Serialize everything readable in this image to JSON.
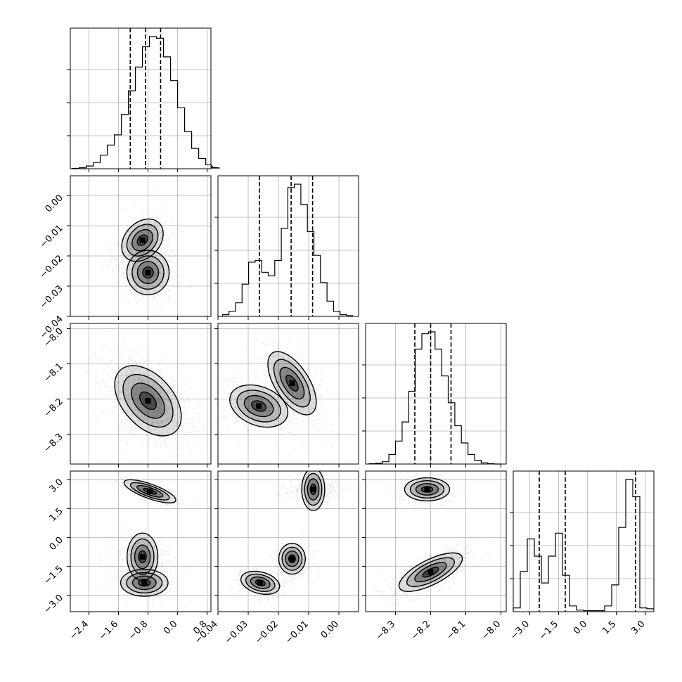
{
  "chart_data": {
    "type": "corner",
    "title": "",
    "grid": true,
    "colors": {
      "line": "#000000",
      "grid": "#b0b0b0",
      "density": "#000000"
    },
    "params": [
      {
        "index": 0,
        "range": [
          -2.9,
          0.9
        ],
        "ticks": [
          -2.4,
          -1.6,
          -0.8,
          0.0,
          0.8
        ],
        "tick_labels": [
          "−2.4",
          "−1.6",
          "−0.8",
          "0.0",
          "0.8"
        ],
        "quantiles": [
          -1.28,
          -0.87,
          -0.46
        ]
      },
      {
        "index": 1,
        "range": [
          -0.04,
          0.0065
        ],
        "ticks": [
          -0.04,
          -0.03,
          -0.02,
          -0.01,
          0.0
        ],
        "tick_labels": [
          "−0.04",
          "−0.03",
          "−0.02",
          "−0.01",
          "0.00"
        ],
        "quantiles": [
          -0.0263,
          -0.0158,
          -0.0087
        ]
      },
      {
        "index": 2,
        "range": [
          -8.385,
          -7.985
        ],
        "ticks": [
          -8.3,
          -8.2,
          -8.1,
          -8.0
        ],
        "tick_labels": [
          "−8.3",
          "−8.2",
          "−8.1",
          "−8.0"
        ],
        "quantiles": [
          -8.245,
          -8.2,
          -8.142
        ]
      },
      {
        "index": 3,
        "range": [
          -3.85,
          3.45
        ],
        "ticks": [
          -3.0,
          -1.5,
          0.0,
          1.5,
          3.0
        ],
        "tick_labels": [
          "−3.0",
          "−1.5",
          "0.0",
          "1.5",
          "3.0"
        ],
        "quantiles": [
          -2.5,
          -1.15,
          2.5
        ]
      }
    ],
    "histograms": [
      {
        "param": 0,
        "bin_edges_start": -2.85,
        "bin_width": 0.19,
        "counts": [
          1,
          3,
          8,
          18,
          40,
          70,
          100,
          160,
          230,
          300,
          360,
          390,
          385,
          330,
          260,
          180,
          110,
          60,
          30,
          12,
          5,
          2
        ]
      },
      {
        "param": 1,
        "bin_edges_start": -0.0385,
        "bin_width": 0.00216,
        "counts": [
          5,
          15,
          40,
          95,
          160,
          165,
          130,
          120,
          165,
          260,
          380,
          390,
          330,
          250,
          180,
          100,
          45,
          15,
          5,
          2
        ]
      },
      {
        "param": 2,
        "bin_edges_start": -8.375,
        "bin_width": 0.01875,
        "counts": [
          1,
          2,
          6,
          25,
          60,
          110,
          190,
          300,
          340,
          345,
          300,
          230,
          160,
          100,
          55,
          25,
          10,
          3,
          1,
          0
        ]
      },
      {
        "param": 3,
        "bin_edges_start": -3.85,
        "bin_width": 0.365,
        "counts": [
          20,
          210,
          380,
          290,
          150,
          290,
          410,
          190,
          30,
          8,
          5,
          5,
          5,
          30,
          140,
          440,
          690,
          600,
          20,
          15
        ]
      }
    ],
    "pairs": [
      {
        "x": 1,
        "y": 0,
        "components": [
          {
            "mx": -0.95,
            "my": -0.0148,
            "sx": 0.28,
            "sy": 0.0035,
            "w": 0.55,
            "rho": 0.3
          },
          {
            "mx": -0.8,
            "my": -0.0255,
            "sx": 0.3,
            "sy": 0.0035,
            "w": 0.45,
            "rho": 0.0
          }
        ]
      },
      {
        "x": 2,
        "y": 0,
        "components": [
          {
            "mx": -0.8,
            "my": -8.205,
            "sx": 0.45,
            "sy": 0.05,
            "w": 1.0,
            "rho": -0.45
          }
        ]
      },
      {
        "x": 2,
        "y": 1,
        "components": [
          {
            "mx": -0.0155,
            "my": -8.155,
            "sx": 0.004,
            "sy": 0.045,
            "w": 0.55,
            "rho": -0.6
          },
          {
            "mx": -0.0265,
            "my": -8.22,
            "sx": 0.0048,
            "sy": 0.03,
            "w": 0.45,
            "rho": -0.3
          }
        ]
      },
      {
        "x": 3,
        "y": 0,
        "components": [
          {
            "mx": -0.75,
            "my": 2.4,
            "sx": 0.35,
            "sy": 0.3,
            "w": 0.33,
            "rho": -0.75
          },
          {
            "mx": -0.95,
            "my": -1.0,
            "sx": 0.32,
            "sy": 0.4,
            "w": 0.33,
            "rho": 0.0
          },
          {
            "mx": -0.9,
            "my": -2.35,
            "sx": 0.32,
            "sy": 0.35,
            "w": 0.34,
            "rho": 0.0
          }
        ]
      },
      {
        "x": 3,
        "y": 1,
        "components": [
          {
            "mx": -0.0085,
            "my": 2.5,
            "sx": 0.0035,
            "sy": 0.3,
            "w": 0.33,
            "rho": 0.0
          },
          {
            "mx": -0.0155,
            "my": -1.1,
            "sx": 0.0022,
            "sy": 0.4,
            "w": 0.33,
            "rho": 0.0
          },
          {
            "mx": -0.026,
            "my": -2.35,
            "sx": 0.0032,
            "sy": 0.3,
            "w": 0.34,
            "rho": -0.3
          }
        ]
      },
      {
        "x": 3,
        "y": 2,
        "components": [
          {
            "mx": -8.21,
            "my": 2.5,
            "sx": 0.032,
            "sy": 0.3,
            "w": 0.33,
            "rho": 0.0
          },
          {
            "mx": -8.2,
            "my": -1.8,
            "sx": 0.045,
            "sy": 0.5,
            "w": 0.67,
            "rho": 0.7
          }
        ]
      }
    ]
  }
}
